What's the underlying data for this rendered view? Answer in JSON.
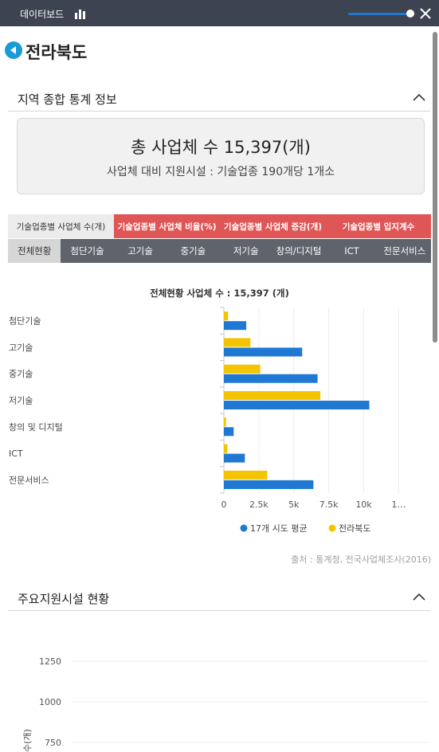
{
  "topbar": {
    "title": "데이터보드",
    "chart_icon": "bar-chart-icon",
    "close_icon": "close-icon",
    "slider_value": 0.95
  },
  "page": {
    "title": "전라북도",
    "back_icon": "back-arrow-icon"
  },
  "section1": {
    "title": "지역 종합 통계 정보"
  },
  "summary": {
    "main": "총 사업체 수 15,397(개)",
    "sub": "사업체 대비 지원시설 : 기술업종 190개당 1개소"
  },
  "tabs_primary": [
    {
      "label": "기술업종별 사업체 수(개)",
      "active": true
    },
    {
      "label": "기술업종별 사업체 비율(%)",
      "active": false
    },
    {
      "label": "기술업종별 사업체 증감(개)",
      "active": false
    },
    {
      "label": "기술업종별 입지계수",
      "active": false
    }
  ],
  "tabs_secondary": [
    {
      "label": "전체현황",
      "active": true
    },
    {
      "label": "첨단기술",
      "active": false
    },
    {
      "label": "고기술",
      "active": false
    },
    {
      "label": "중기술",
      "active": false
    },
    {
      "label": "저기술",
      "active": false
    },
    {
      "label": "창의/디지털",
      "active": false
    },
    {
      "label": "ICT",
      "active": false
    },
    {
      "label": "전문서비스",
      "active": false
    }
  ],
  "colors": {
    "series_avg": "#1f78d1",
    "series_region": "#f5c400",
    "tab_red": "#e05555",
    "tab_dark": "#5e636c"
  },
  "chart_data": [
    {
      "type": "bar",
      "orientation": "horizontal",
      "title": "전체현황 사업체 수 : 15,397 (개)",
      "categories": [
        "첨단기술",
        "고기술",
        "중기술",
        "저기술",
        "창의 및 디지털",
        "ICT",
        "전문서비스"
      ],
      "series": [
        {
          "name": "17개 시도 평균",
          "values": [
            1600,
            5600,
            6700,
            10400,
            700,
            1500,
            6400
          ]
        },
        {
          "name": "전라북도",
          "values": [
            300,
            1900,
            2600,
            6900,
            150,
            250,
            3100
          ]
        }
      ],
      "xlim": [
        0,
        12500
      ],
      "x_ticks": [
        "0",
        "2.5k",
        "5k",
        "7.5k",
        "10k",
        "1…"
      ],
      "legend_position": "bottom",
      "grid": true
    },
    {
      "type": "bar",
      "title": "",
      "ylabel": "수(개)",
      "y_ticks": [
        "1250",
        "1000",
        "750"
      ],
      "ylim": [
        750,
        1250
      ],
      "grid": true
    }
  ],
  "source": "출처 : 통계청, 전국사업체조사(2016)",
  "section2": {
    "title": "주요지원시설 현황"
  }
}
